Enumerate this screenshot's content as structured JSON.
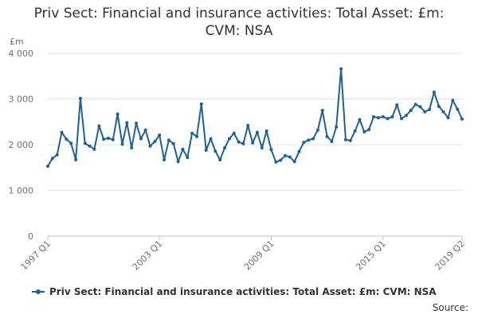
{
  "title_line1": "Priv Sect: Financial and insurance activities: Total Asset: £m:",
  "title_line2": "CVM: NSA",
  "source": "Source:",
  "unit_label": "£m",
  "chart_data": {
    "type": "line",
    "title": "Priv Sect: Financial and insurance activities: Total Asset: £m: CVM: NSA",
    "ylabel": "£m",
    "ylim": [
      0,
      4000
    ],
    "y_ticks": [
      0,
      1000,
      2000,
      3000,
      4000
    ],
    "y_tick_labels": [
      "0",
      "1 000",
      "2 000",
      "3 000",
      "4 000"
    ],
    "x_tick_labels": [
      "1997 Q1",
      "2003 Q1",
      "2009 Q1",
      "2015 Q1",
      "2019 Q2"
    ],
    "x_tick_indices": [
      0,
      24,
      48,
      72,
      89
    ],
    "grid": true,
    "legend_position": "bottom",
    "color": "#206095",
    "series": [
      {
        "name": "Priv Sect: Financial and insurance activities: Total Asset: £m: CVM: NSA",
        "periods": [
          "1997 Q1",
          "1997 Q2",
          "1997 Q3",
          "1997 Q4",
          "1998 Q1",
          "1998 Q2",
          "1998 Q3",
          "1998 Q4",
          "1999 Q1",
          "1999 Q2",
          "1999 Q3",
          "1999 Q4",
          "2000 Q1",
          "2000 Q2",
          "2000 Q3",
          "2000 Q4",
          "2001 Q1",
          "2001 Q2",
          "2001 Q3",
          "2001 Q4",
          "2002 Q1",
          "2002 Q2",
          "2002 Q3",
          "2002 Q4",
          "2003 Q1",
          "2003 Q2",
          "2003 Q3",
          "2003 Q4",
          "2004 Q1",
          "2004 Q2",
          "2004 Q3",
          "2004 Q4",
          "2005 Q1",
          "2005 Q2",
          "2005 Q3",
          "2005 Q4",
          "2006 Q1",
          "2006 Q2",
          "2006 Q3",
          "2006 Q4",
          "2007 Q1",
          "2007 Q2",
          "2007 Q3",
          "2007 Q4",
          "2008 Q1",
          "2008 Q2",
          "2008 Q3",
          "2008 Q4",
          "2009 Q1",
          "2009 Q2",
          "2009 Q3",
          "2009 Q4",
          "2010 Q1",
          "2010 Q2",
          "2010 Q3",
          "2010 Q4",
          "2011 Q1",
          "2011 Q2",
          "2011 Q3",
          "2011 Q4",
          "2012 Q1",
          "2012 Q2",
          "2012 Q3",
          "2012 Q4",
          "2013 Q1",
          "2013 Q2",
          "2013 Q3",
          "2013 Q4",
          "2014 Q1",
          "2014 Q2",
          "2014 Q3",
          "2014 Q4",
          "2015 Q1",
          "2015 Q2",
          "2015 Q3",
          "2015 Q4",
          "2016 Q1",
          "2016 Q2",
          "2016 Q3",
          "2016 Q4",
          "2017 Q1",
          "2017 Q2",
          "2017 Q3",
          "2017 Q4",
          "2018 Q1",
          "2018 Q2",
          "2018 Q3",
          "2018 Q4",
          "2019 Q1",
          "2019 Q2"
        ],
        "values": [
          1530,
          1700,
          1780,
          2270,
          2120,
          2030,
          1670,
          3010,
          2030,
          1970,
          1900,
          2410,
          2120,
          2140,
          2110,
          2670,
          2010,
          2480,
          1930,
          2470,
          2130,
          2320,
          1970,
          2070,
          2210,
          1670,
          2100,
          2020,
          1630,
          1900,
          1720,
          2250,
          2180,
          2890,
          1880,
          2130,
          1860,
          1670,
          1930,
          2130,
          2250,
          2060,
          2020,
          2420,
          2040,
          2270,
          1930,
          2300,
          1890,
          1620,
          1660,
          1760,
          1730,
          1630,
          1850,
          2050,
          2100,
          2130,
          2320,
          2750,
          2180,
          2070,
          2390,
          3660,
          2110,
          2090,
          2300,
          2550,
          2280,
          2330,
          2610,
          2590,
          2610,
          2570,
          2610,
          2870,
          2570,
          2640,
          2750,
          2880,
          2830,
          2720,
          2770,
          3150,
          2840,
          2720,
          2590,
          2970,
          2780,
          2560
        ]
      }
    ]
  }
}
